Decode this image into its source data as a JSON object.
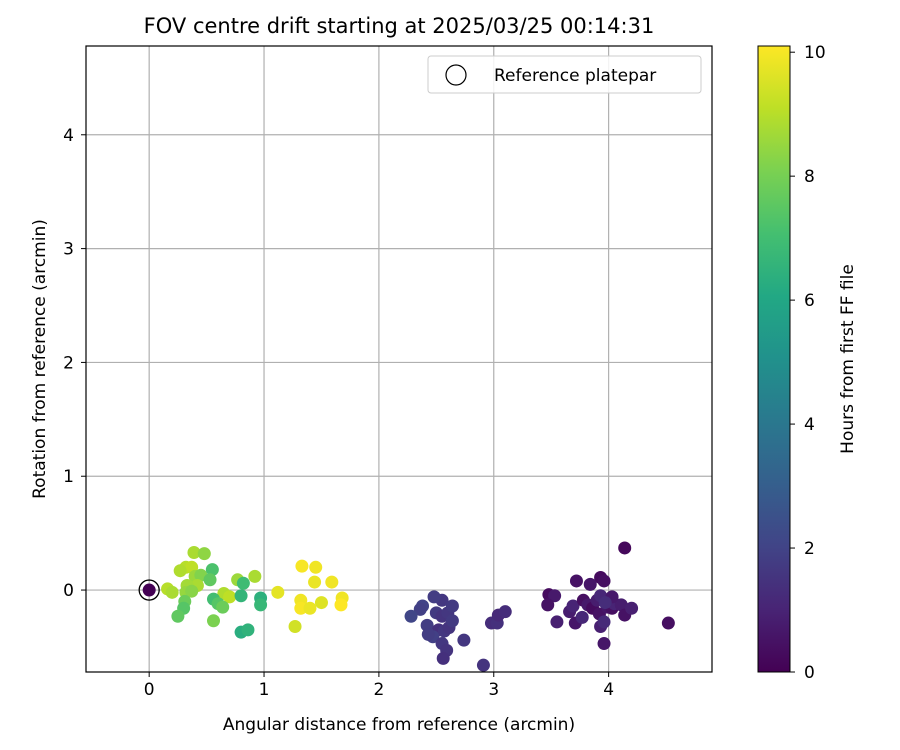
{
  "chart_data": {
    "type": "scatter",
    "title": "FOV centre drift starting at 2025/03/25 00:14:31",
    "xlabel": "Angular distance from reference (arcmin)",
    "ylabel": "Rotation from reference (arcmin)",
    "xlim": [
      -0.55,
      4.9
    ],
    "ylim": [
      -0.72,
      4.78
    ],
    "xticks": [
      0,
      1,
      2,
      3,
      4
    ],
    "yticks": [
      0,
      1,
      2,
      3,
      4
    ],
    "grid": true,
    "legend": {
      "placement": "top-right",
      "entries": [
        "Reference platepar"
      ]
    },
    "colorbar": {
      "label": "Hours from first FF file",
      "range": [
        0,
        10.1
      ],
      "ticks": [
        0,
        2,
        4,
        6,
        8,
        10
      ],
      "colormap": "viridis"
    },
    "reference_point": {
      "x": 0,
      "y": 0,
      "hours": 0
    },
    "points": [
      [
        4.14,
        0.37,
        0.2
      ],
      [
        3.93,
        0.11,
        0.3
      ],
      [
        3.96,
        0.08,
        0.4
      ],
      [
        3.72,
        0.08,
        0.5
      ],
      [
        3.84,
        0.05,
        0.6
      ],
      [
        3.48,
        -0.04,
        0.3
      ],
      [
        3.53,
        -0.05,
        0.7
      ],
      [
        3.47,
        -0.13,
        0.5
      ],
      [
        3.55,
        -0.28,
        0.9
      ],
      [
        3.66,
        -0.19,
        0.8
      ],
      [
        3.69,
        -0.14,
        1.0
      ],
      [
        3.71,
        -0.29,
        0.6
      ],
      [
        3.78,
        -0.09,
        0.4
      ],
      [
        3.77,
        -0.24,
        1.1
      ],
      [
        3.82,
        -0.13,
        0.7
      ],
      [
        3.86,
        -0.16,
        0.3
      ],
      [
        3.9,
        -0.09,
        0.8
      ],
      [
        3.92,
        -0.21,
        0.5
      ],
      [
        3.93,
        -0.32,
        0.9
      ],
      [
        3.96,
        -0.28,
        1.2
      ],
      [
        3.99,
        -0.15,
        0.6
      ],
      [
        4.03,
        -0.16,
        0.4
      ],
      [
        4.05,
        -0.12,
        1.0
      ],
      [
        4.11,
        -0.13,
        0.8
      ],
      [
        4.14,
        -0.22,
        0.5
      ],
      [
        4.2,
        -0.16,
        0.9
      ],
      [
        3.96,
        -0.47,
        0.6
      ],
      [
        4.52,
        -0.29,
        0.4
      ],
      [
        3.93,
        -0.05,
        1.1
      ],
      [
        4.03,
        -0.06,
        0.7
      ],
      [
        3.97,
        -0.11,
        1.3
      ],
      [
        2.55,
        -0.09,
        1.6
      ],
      [
        2.48,
        -0.06,
        1.8
      ],
      [
        2.38,
        -0.14,
        2.0
      ],
      [
        2.36,
        -0.17,
        1.9
      ],
      [
        2.28,
        -0.23,
        2.1
      ],
      [
        2.5,
        -0.2,
        1.7
      ],
      [
        2.55,
        -0.23,
        1.5
      ],
      [
        2.6,
        -0.2,
        1.6
      ],
      [
        2.64,
        -0.14,
        1.7
      ],
      [
        2.42,
        -0.31,
        1.8
      ],
      [
        2.52,
        -0.35,
        1.4
      ],
      [
        2.57,
        -0.36,
        1.6
      ],
      [
        2.61,
        -0.33,
        1.5
      ],
      [
        2.64,
        -0.27,
        1.7
      ],
      [
        2.47,
        -0.41,
        1.9
      ],
      [
        2.43,
        -0.39,
        1.8
      ],
      [
        2.55,
        -0.47,
        1.6
      ],
      [
        2.59,
        -0.53,
        1.5
      ],
      [
        2.56,
        -0.6,
        1.4
      ],
      [
        2.74,
        -0.44,
        1.6
      ],
      [
        2.91,
        -0.66,
        1.5
      ],
      [
        2.98,
        -0.29,
        1.3
      ],
      [
        3.03,
        -0.29,
        1.4
      ],
      [
        3.04,
        -0.22,
        1.2
      ],
      [
        3.1,
        -0.19,
        1.3
      ],
      [
        1.33,
        0.21,
        10.0
      ],
      [
        1.45,
        0.2,
        9.9
      ],
      [
        1.44,
        0.07,
        9.8
      ],
      [
        1.59,
        0.07,
        9.9
      ],
      [
        1.12,
        -0.02,
        9.7
      ],
      [
        1.32,
        -0.09,
        9.9
      ],
      [
        1.32,
        -0.16,
        10.0
      ],
      [
        1.4,
        -0.16,
        9.8
      ],
      [
        1.5,
        -0.11,
        9.6
      ],
      [
        1.68,
        -0.07,
        9.9
      ],
      [
        1.67,
        -0.13,
        10.1
      ],
      [
        1.27,
        -0.32,
        9.4
      ],
      [
        0.39,
        0.33,
        8.8
      ],
      [
        0.48,
        0.32,
        8.4
      ],
      [
        0.32,
        0.2,
        9.0
      ],
      [
        0.37,
        0.2,
        9.1
      ],
      [
        0.27,
        0.17,
        8.9
      ],
      [
        0.4,
        0.12,
        8.6
      ],
      [
        0.45,
        0.13,
        8.2
      ],
      [
        0.42,
        0.04,
        8.8
      ],
      [
        0.33,
        0.04,
        8.7
      ],
      [
        0.16,
        0.01,
        9.0
      ],
      [
        0.2,
        -0.02,
        8.8
      ],
      [
        0.32,
        -0.02,
        8.5
      ],
      [
        0.37,
        -0.01,
        8.3
      ],
      [
        0.31,
        -0.1,
        7.8
      ],
      [
        0.3,
        -0.16,
        7.4
      ],
      [
        0.25,
        -0.23,
        7.6
      ],
      [
        0.55,
        0.18,
        7.2
      ],
      [
        0.53,
        0.09,
        7.6
      ],
      [
        0.65,
        -0.03,
        8.9
      ],
      [
        0.7,
        -0.06,
        9.1
      ],
      [
        0.77,
        0.09,
        8.6
      ],
      [
        0.82,
        0.06,
        6.9
      ],
      [
        0.92,
        0.12,
        8.8
      ],
      [
        0.56,
        -0.08,
        7.0
      ],
      [
        0.6,
        -0.12,
        7.4
      ],
      [
        0.64,
        -0.15,
        7.8
      ],
      [
        0.56,
        -0.27,
        8.1
      ],
      [
        0.8,
        -0.05,
        6.6
      ],
      [
        0.97,
        -0.07,
        6.4
      ],
      [
        0.97,
        -0.13,
        6.7
      ],
      [
        0.8,
        -0.37,
        6.3
      ],
      [
        0.86,
        -0.35,
        6.5
      ],
      [
        0,
        0,
        0
      ]
    ]
  }
}
